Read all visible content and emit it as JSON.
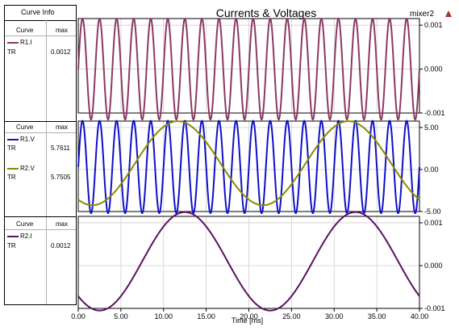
{
  "header": {
    "curve_info_label": "Curve Info",
    "project_name": "mixer2"
  },
  "legend_panes": [
    {
      "col_curve": "Curve",
      "col_max": "max",
      "entries": [
        {
          "name": "R1.I",
          "sub": "TR",
          "max": "0.0012",
          "color": "#8b3a62"
        }
      ]
    },
    {
      "col_curve": "Curve",
      "col_max": "max",
      "entries": [
        {
          "name": "R1.V",
          "sub": "TR",
          "max": "5.7611",
          "color": "#1010c8"
        },
        {
          "name": "R2.V",
          "sub": "TR",
          "max": "5.7505",
          "color": "#8b8b00"
        }
      ]
    },
    {
      "col_curve": "Curve",
      "col_max": "max",
      "entries": [
        {
          "name": "R2.I",
          "sub": "TR",
          "max": "0.0012",
          "color": "#5a1060"
        }
      ]
    }
  ],
  "chart_data": {
    "type": "line",
    "title": "Currents & Voltages",
    "xlabel": "Time [ms]",
    "xlim": [
      0,
      40
    ],
    "x_ticks": [
      "0.00",
      "5.00",
      "10.00",
      "15.00",
      "20.00",
      "25.00",
      "30.00",
      "35.00",
      "40.00"
    ],
    "panes": [
      {
        "ylim": [
          -0.001,
          0.00115
        ],
        "y_ticks": [
          {
            "value": 0.001,
            "label": "0.001"
          },
          {
            "value": 0,
            "label": "0.000"
          },
          {
            "value": -0.001,
            "label": "-0.001"
          }
        ],
        "series": [
          {
            "name": "R1.I",
            "color": "#8b3a62",
            "amplitude": 0.00115,
            "frequency_khz": 0.5,
            "phase_deg": 0,
            "offset": 0
          }
        ]
      },
      {
        "ylim": [
          -5.0,
          5.76
        ],
        "y_ticks": [
          {
            "value": 5,
            "label": "5.00"
          },
          {
            "value": 0,
            "label": "0.00"
          },
          {
            "value": -5,
            "label": "-5.00"
          }
        ],
        "series": [
          {
            "name": "R1.V",
            "color": "#1010c8",
            "amplitude": 5.5,
            "frequency_khz": 0.5,
            "phase_deg": 0,
            "offset": 0.3
          },
          {
            "name": "R2.V",
            "color": "#8b8b00",
            "amplitude": 5.0,
            "frequency_khz": 0.05,
            "phase_deg": 240,
            "offset": 0.75
          }
        ]
      },
      {
        "ylim": [
          -0.001,
          0.00115
        ],
        "y_ticks": [
          {
            "value": 0.001,
            "label": "0.001"
          },
          {
            "value": 0,
            "label": "0.000"
          },
          {
            "value": -0.001,
            "label": "-0.001"
          }
        ],
        "series": [
          {
            "name": "R2.I",
            "color": "#5a1060",
            "amplitude": 0.00115,
            "frequency_khz": 0.05,
            "phase_deg": 225,
            "offset": 0.0001
          }
        ]
      }
    ]
  }
}
